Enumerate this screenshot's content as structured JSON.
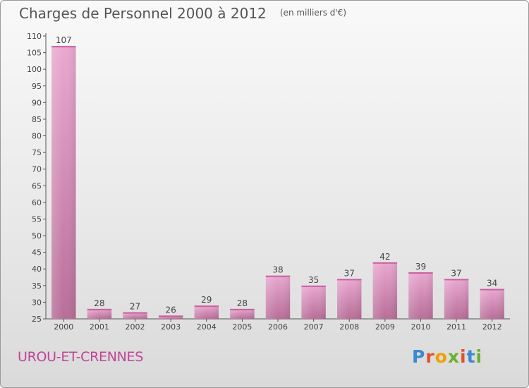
{
  "header": {
    "title": "Charges de Personnel 2000 à 2012",
    "subtitle": "(en milliers d'€)"
  },
  "footer": {
    "place": "UROU-ET-CRENNES",
    "logo": "Proxiti"
  },
  "colors": {
    "bar_light": "#e9a8d0",
    "bar_dark": "#b86e98",
    "axis": "#555555",
    "place_text": "#c0449a",
    "logo_letters": [
      "#3a8ad0",
      "#e0532a",
      "#f0a000",
      "#6ab02e",
      "#e0532a",
      "#3a8ad0",
      "#6ab02e"
    ]
  },
  "chart_data": {
    "type": "bar",
    "title": "Charges de Personnel 2000 à 2012",
    "subtitle": "(en milliers d'€)",
    "categories": [
      "2000",
      "2001",
      "2002",
      "2003",
      "2004",
      "2005",
      "2006",
      "2007",
      "2008",
      "2009",
      "2010",
      "2011",
      "2012"
    ],
    "values": [
      107,
      28,
      27,
      26,
      29,
      28,
      38,
      35,
      37,
      42,
      39,
      37,
      34
    ],
    "ylim": [
      25,
      110
    ],
    "yticks": [
      25,
      30,
      35,
      40,
      45,
      50,
      55,
      60,
      65,
      70,
      75,
      80,
      85,
      90,
      95,
      100,
      105,
      110
    ],
    "grid": false,
    "data_labels": true
  }
}
